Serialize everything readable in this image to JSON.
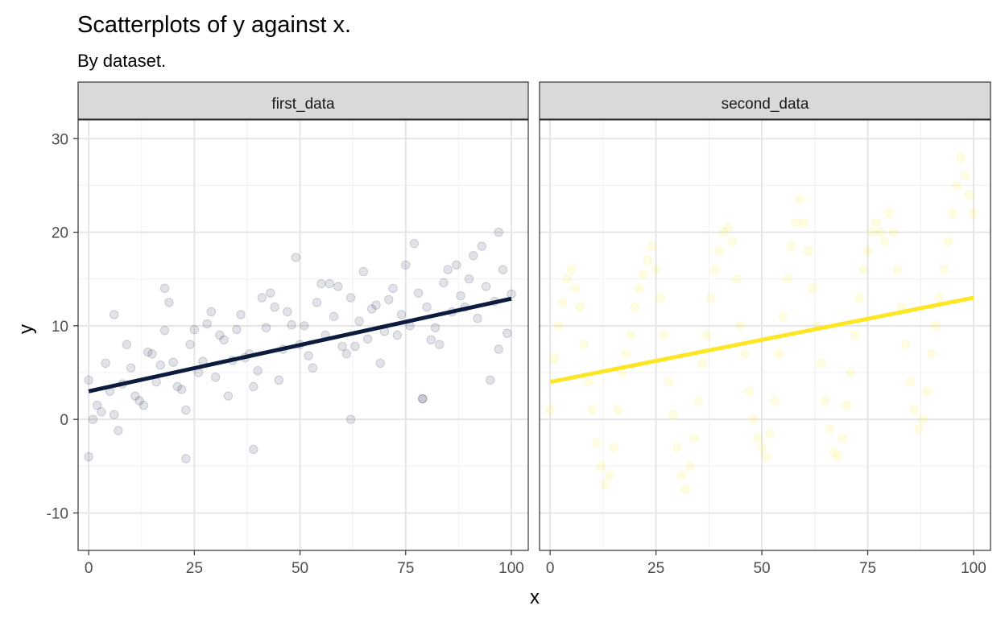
{
  "title": "Scatterplots of y against x.",
  "subtitle": "By dataset.",
  "xlabel": "x",
  "ylabel": "y",
  "chart_data": {
    "type": "scatter",
    "title": "Scatterplots of y against x.",
    "subtitle": "By dataset.",
    "xlabel": "x",
    "ylabel": "y",
    "xlim": [
      -2.5,
      104
    ],
    "ylim": [
      -14,
      32
    ],
    "x_ticks": [
      0,
      25,
      50,
      75,
      100
    ],
    "y_ticks": [
      -10,
      0,
      10,
      20,
      30
    ],
    "x_tick_labels": [
      "0",
      "25",
      "50",
      "75",
      "100"
    ],
    "y_tick_labels": [
      "-10",
      "0",
      "10",
      "20",
      "30"
    ],
    "grid": true,
    "legend": "none",
    "facets": [
      {
        "label": "first_data",
        "point_color": "#0d1b3e",
        "point_alpha": 0.12,
        "line_color": "#0d1b3e",
        "fit_line": {
          "x": [
            0,
            100
          ],
          "y": [
            3.0,
            12.9
          ]
        },
        "points": {
          "x": [
            0,
            2,
            4,
            6,
            8,
            10,
            12,
            14,
            16,
            18,
            20,
            22,
            24,
            26,
            28,
            30,
            32,
            34,
            36,
            38,
            40,
            42,
            44,
            46,
            48,
            50,
            52,
            54,
            56,
            58,
            60,
            62,
            64,
            66,
            68,
            70,
            72,
            74,
            76,
            78,
            80,
            82,
            84,
            86,
            88,
            90,
            92,
            94,
            96,
            98,
            100,
            1,
            5,
            9,
            13,
            17,
            21,
            25,
            29,
            33,
            37,
            41,
            45,
            49,
            53,
            57,
            61,
            65,
            69,
            73,
            77,
            81,
            85,
            89,
            93,
            97,
            3,
            11,
            19,
            27,
            35,
            43,
            51,
            59,
            67,
            75,
            83,
            91,
            99,
            0,
            7,
            15,
            23,
            31,
            39,
            47,
            55,
            63,
            71,
            79,
            87,
            95,
            6,
            18,
            23,
            39,
            62,
            79,
            97
          ],
          "y": [
            4.2,
            1.5,
            6.0,
            0.5,
            3.8,
            5.5,
            2.0,
            7.2,
            4.0,
            9.5,
            6.1,
            3.2,
            8.0,
            5.0,
            10.2,
            4.5,
            8.5,
            6.3,
            11.2,
            7.0,
            5.2,
            9.8,
            12.0,
            7.5,
            10.1,
            8.0,
            6.8,
            12.5,
            9.0,
            11.0,
            7.8,
            13.0,
            10.5,
            8.6,
            12.2,
            9.4,
            14.0,
            11.2,
            10.0,
            13.5,
            12.0,
            9.8,
            14.6,
            11.5,
            13.2,
            15.0,
            10.8,
            14.2,
            12.6,
            16.0,
            13.4,
            0.0,
            3.0,
            8.0,
            1.5,
            5.8,
            3.5,
            9.6,
            11.5,
            2.5,
            6.6,
            13.0,
            4.2,
            17.3,
            5.5,
            14.5,
            7.0,
            15.8,
            6.0,
            9.0,
            18.8,
            8.5,
            16.0,
            12.0,
            18.5,
            20.0,
            0.8,
            2.5,
            12.5,
            6.2,
            9.6,
            13.5,
            10.0,
            14.2,
            11.8,
            16.5,
            8.0,
            17.5,
            9.2,
            -4.0,
            -1.2,
            7.0,
            1.0,
            9.0,
            3.5,
            11.5,
            14.5,
            7.8,
            12.8,
            2.2,
            16.5,
            4.2,
            11.2,
            14.0,
            -4.2,
            -3.2,
            0.0,
            2.2,
            7.5
          ]
        }
      },
      {
        "label": "second_data",
        "point_color": "#fde725",
        "point_alpha": 0.12,
        "line_color": "#fde725",
        "fit_line": {
          "x": [
            0,
            100
          ],
          "y": [
            4.0,
            13.0
          ]
        },
        "points": {
          "x": [
            0,
            1,
            2,
            3,
            4,
            5,
            6,
            7,
            8,
            9,
            10,
            11,
            12,
            13,
            14,
            15,
            16,
            17,
            18,
            19,
            20,
            21,
            22,
            23,
            24,
            25,
            26,
            27,
            28,
            29,
            30,
            31,
            32,
            33,
            34,
            35,
            36,
            37,
            38,
            39,
            40,
            41,
            42,
            43,
            44,
            45,
            46,
            47,
            48,
            49,
            50,
            51,
            52,
            53,
            54,
            55,
            56,
            57,
            58,
            59,
            60,
            61,
            62,
            63,
            64,
            65,
            66,
            67,
            68,
            69,
            70,
            71,
            72,
            73,
            74,
            75,
            76,
            77,
            78,
            79,
            80,
            81,
            82,
            83,
            84,
            85,
            86,
            87,
            88,
            89,
            90,
            91,
            92,
            93,
            94,
            95,
            96,
            97,
            98,
            99,
            100
          ],
          "y": [
            1.0,
            6.5,
            10.0,
            12.5,
            15.0,
            16.0,
            14.0,
            12.0,
            8.0,
            4.0,
            1.0,
            -2.5,
            -5.0,
            -7.0,
            -6.0,
            -3.0,
            1.0,
            5.0,
            7.0,
            9.0,
            12.0,
            14.0,
            15.5,
            17.0,
            18.5,
            16.0,
            13.0,
            9.0,
            4.0,
            0.5,
            -3.0,
            -6.0,
            -7.5,
            -5.0,
            -2.0,
            2.0,
            6.0,
            9.0,
            13.0,
            16.0,
            18.0,
            20.0,
            20.5,
            19.0,
            15.0,
            10.0,
            7.0,
            3.0,
            0.0,
            -2.0,
            -3.0,
            -4.0,
            -1.5,
            2.0,
            7.0,
            11.0,
            15.0,
            18.5,
            21.0,
            23.5,
            21.0,
            18.0,
            14.0,
            10.0,
            6.0,
            2.0,
            -1.0,
            -3.5,
            -4.0,
            -2.0,
            1.5,
            5.0,
            9.0,
            13.0,
            16.0,
            18.0,
            20.0,
            21.0,
            20.0,
            19.0,
            22.0,
            20.0,
            16.0,
            12.0,
            8.0,
            4.0,
            1.0,
            -1.0,
            0.0,
            3.0,
            7.0,
            10.0,
            13.0,
            16.0,
            19.0,
            22.0,
            25.0,
            28.0,
            26.0,
            24.0,
            22.0
          ]
        }
      }
    ]
  }
}
